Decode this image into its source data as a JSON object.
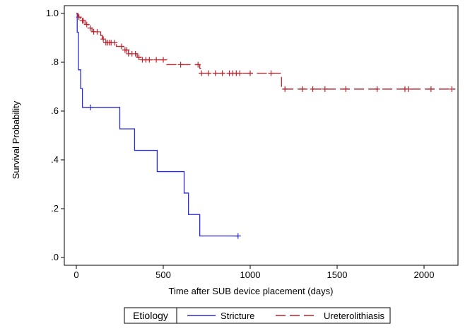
{
  "chart_data": {
    "type": "line",
    "title": "",
    "xlabel": "Time after SUB device placement (days)",
    "ylabel": "Survival Probability",
    "xlim": [
      0,
      2200
    ],
    "ylim": [
      0,
      1.0
    ],
    "xticks": [
      0,
      500,
      1000,
      1500,
      2000
    ],
    "xtick_labels": [
      "0",
      "500",
      "1000",
      "1500",
      "2000"
    ],
    "yticks": [
      0,
      0.2,
      0.4,
      0.6,
      0.8,
      1.0
    ],
    "ytick_labels": [
      ".0",
      ".2",
      ".4",
      ".6",
      ".8",
      "1.0"
    ],
    "grid": false,
    "legend": {
      "title": "Etiology",
      "placement": "bottom"
    },
    "series": [
      {
        "name": "Stricture",
        "color": "#2b2bd6",
        "dash": "solid",
        "steps": [
          [
            0,
            1.0
          ],
          [
            5,
            0.923
          ],
          [
            12,
            0.769
          ],
          [
            25,
            0.692
          ],
          [
            35,
            0.615
          ],
          [
            250,
            0.527
          ],
          [
            335,
            0.439
          ],
          [
            465,
            0.352
          ],
          [
            620,
            0.264
          ],
          [
            645,
            0.176
          ],
          [
            710,
            0.088
          ],
          [
            935,
            0.088
          ]
        ],
        "censored": [
          82,
          930
        ]
      },
      {
        "name": "Ureterolithiasis",
        "color": "#b8242e",
        "dash": "dashed",
        "steps": [
          [
            0,
            1.0
          ],
          [
            10,
            0.985
          ],
          [
            25,
            0.97
          ],
          [
            50,
            0.955
          ],
          [
            70,
            0.94
          ],
          [
            90,
            0.925
          ],
          [
            140,
            0.91
          ],
          [
            150,
            0.895
          ],
          [
            170,
            0.88
          ],
          [
            230,
            0.865
          ],
          [
            270,
            0.85
          ],
          [
            300,
            0.835
          ],
          [
            350,
            0.82
          ],
          [
            370,
            0.81
          ],
          [
            520,
            0.79
          ],
          [
            710,
            0.775
          ],
          [
            715,
            0.755
          ],
          [
            1180,
            0.69
          ],
          [
            2180,
            0.69
          ]
        ],
        "censored": [
          15,
          35,
          40,
          60,
          80,
          100,
          120,
          155,
          170,
          180,
          190,
          200,
          220,
          260,
          280,
          290,
          300,
          320,
          340,
          360,
          380,
          400,
          420,
          460,
          500,
          600,
          700,
          720,
          760,
          800,
          840,
          880,
          900,
          920,
          940,
          1000,
          1120,
          1200,
          1300,
          1360,
          1430,
          1550,
          1730,
          1890,
          1910,
          2040,
          2160
        ]
      }
    ]
  }
}
